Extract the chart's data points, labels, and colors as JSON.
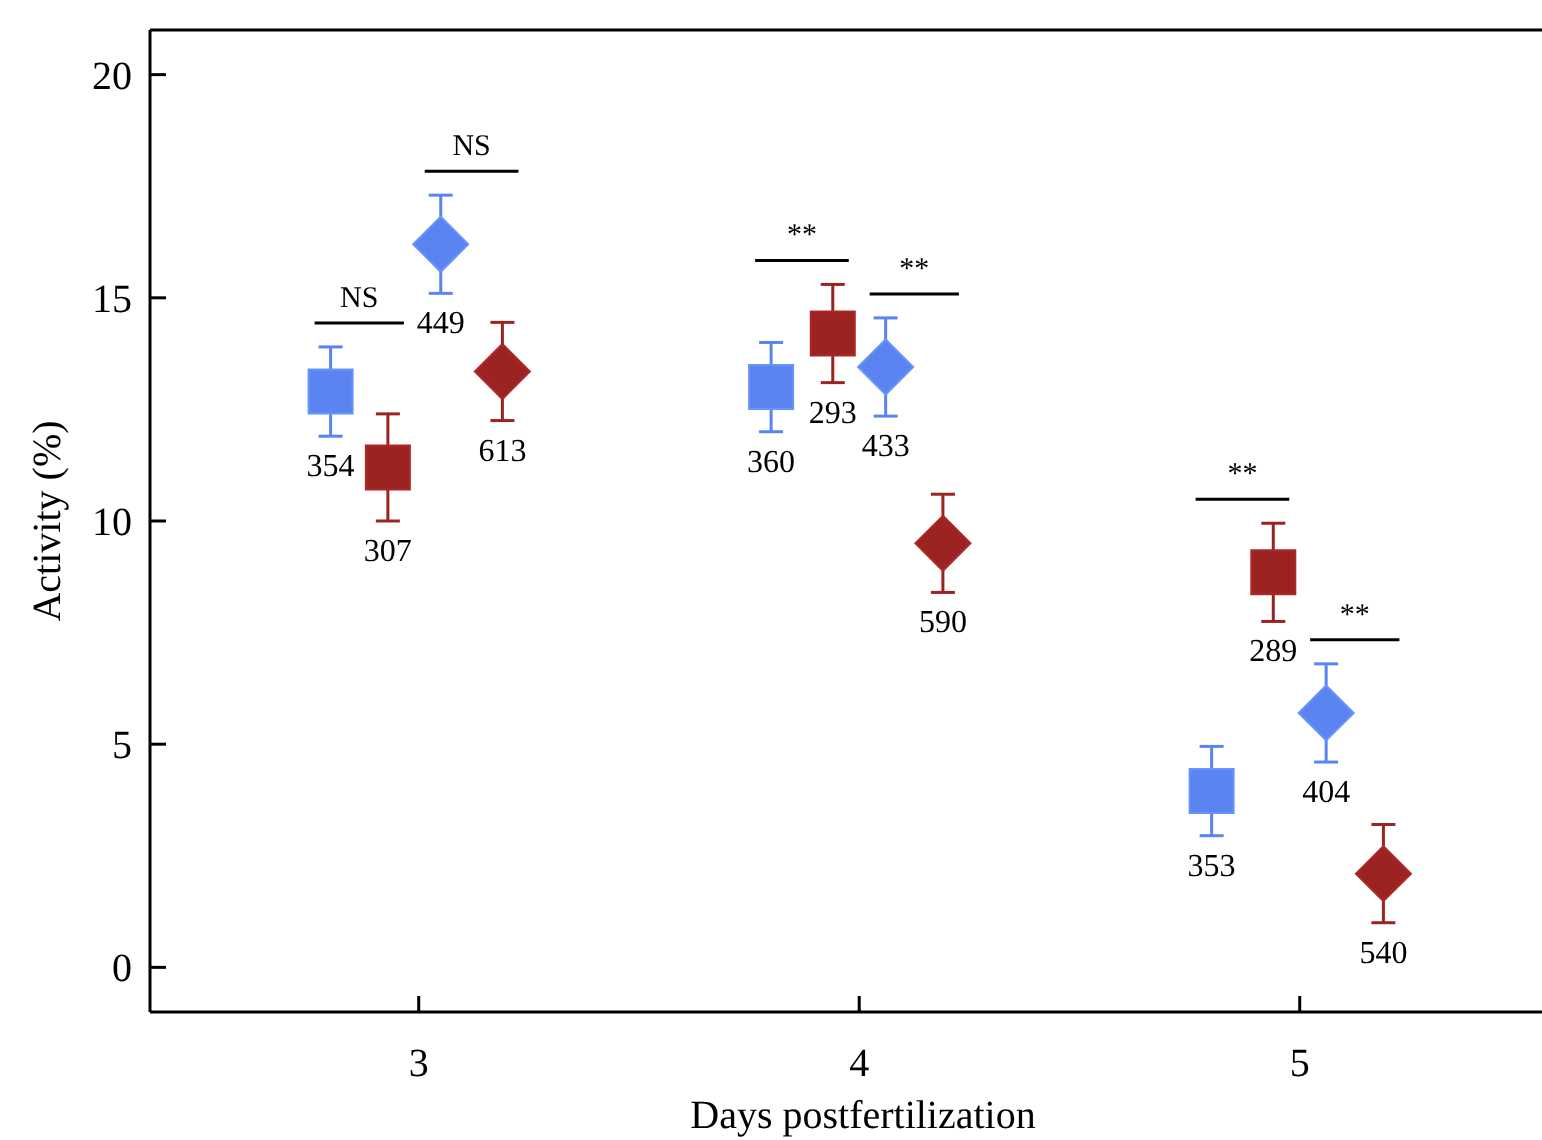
{
  "chart_data": {
    "type": "scatter",
    "xlabel": "Days postfertilization",
    "ylabel": "Activity (%)",
    "xlim": [
      2.39,
      5.55
    ],
    "xticks": [
      3,
      4,
      5
    ],
    "ylim": [
      -1,
      21
    ],
    "yticks": [
      0,
      5,
      10,
      15,
      20
    ],
    "series": [
      {
        "color": "#5b84f0",
        "marker": "square",
        "x": [
          2.8,
          3.8,
          4.8
        ],
        "values": [
          12.9,
          13.0,
          3.95
        ],
        "errors": [
          1.0,
          1.0,
          1.0
        ]
      },
      {
        "color": "#9b2423",
        "marker": "square",
        "x": [
          2.93,
          3.94,
          4.94
        ],
        "values": [
          11.2,
          14.2,
          8.85
        ],
        "errors": [
          1.2,
          1.1,
          1.1
        ]
      },
      {
        "color": "#5b84f0",
        "marker": "diamond",
        "x": [
          3.05,
          4.06,
          5.06
        ],
        "values": [
          16.2,
          13.45,
          5.7
        ],
        "errors": [
          1.1,
          1.1,
          1.1
        ]
      },
      {
        "color": "#9b2423",
        "marker": "diamond",
        "x": [
          3.19,
          4.19,
          5.19
        ],
        "values": [
          13.35,
          9.5,
          2.1
        ],
        "errors": [
          1.1,
          1.1,
          1.1
        ]
      }
    ],
    "annotations": [
      "NS",
      "NS",
      "**",
      "**",
      "**",
      "**",
      {
        "text": "354",
        "x": 2.8,
        "y": 12.9
      },
      {
        "text": "360",
        "x": 3.8,
        "y": 13.0
      },
      {
        "text": "353",
        "x": 4.8,
        "y": 3.95
      },
      {
        "text": "307",
        "x": 2.93,
        "y": 11.2
      },
      {
        "text": "293",
        "x": 3.94,
        "y": 14.2
      },
      {
        "text": "289",
        "x": 4.94,
        "y": 8.85
      },
      {
        "text": "449",
        "x": 3.05,
        "y": 16.2
      },
      {
        "text": "433",
        "x": 4.06,
        "y": 13.45
      },
      {
        "text": "404",
        "x": 5.06,
        "y": 5.7
      },
      {
        "text": "613",
        "x": 3.19,
        "y": 13.35
      },
      {
        "text": "590",
        "x": 4.19,
        "y": 9.5
      },
      {
        "text": "540",
        "x": 5.19,
        "y": 2.1
      }
    ]
  }
}
